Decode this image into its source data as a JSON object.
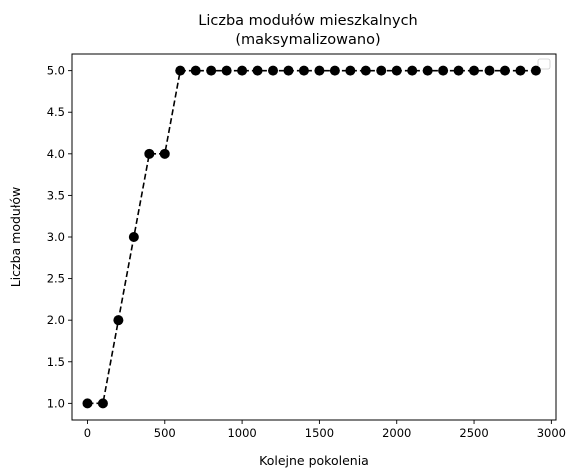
{
  "chart_data": {
    "type": "line",
    "title_line1": "Liczba modułów mieszkalnych",
    "title_line2": "(maksymalizowano)",
    "xlabel": "Kolejne pokolenia",
    "ylabel": "Liczba modułów",
    "xlim": [
      -100,
      3030
    ],
    "ylim": [
      0.8,
      5.2
    ],
    "x_ticks": [
      0,
      500,
      1000,
      1500,
      2000,
      2500,
      3000
    ],
    "y_ticks": [
      1.0,
      1.5,
      2.0,
      2.5,
      3.0,
      3.5,
      4.0,
      4.5,
      5.0
    ],
    "y_tick_labels": [
      "1.0",
      "1.5",
      "2.0",
      "2.5",
      "3.0",
      "3.5",
      "4.0",
      "4.5",
      "5.0"
    ],
    "grid": false,
    "legend": "top-right (empty)",
    "series": [
      {
        "line_style": "dashed",
        "marker": "circle",
        "color": "#000000",
        "x": [
          0,
          100,
          200,
          300,
          400,
          500,
          600,
          700,
          800,
          900,
          1000,
          1100,
          1200,
          1300,
          1400,
          1500,
          1600,
          1700,
          1800,
          1900,
          2000,
          2100,
          2200,
          2300,
          2400,
          2500,
          2600,
          2700,
          2800,
          2900
        ],
        "y": [
          1,
          1,
          2,
          3,
          4,
          4,
          5,
          5,
          5,
          5,
          5,
          5,
          5,
          5,
          5,
          5,
          5,
          5,
          5,
          5,
          5,
          5,
          5,
          5,
          5,
          5,
          5,
          5,
          5,
          5
        ]
      }
    ]
  }
}
